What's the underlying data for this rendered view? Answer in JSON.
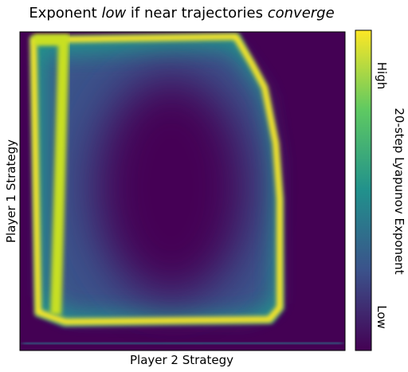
{
  "chart_data": {
    "type": "heatmap",
    "title_parts": [
      "Exponent ",
      "low",
      " if near trajectories ",
      "converge"
    ],
    "title_italic": [
      false,
      true,
      false,
      true
    ],
    "xlabel": "Player 2 Strategy",
    "ylabel": "Player 1 Strategy",
    "colorbar_label": "20-step Lyapunov Exponent",
    "colorbar_ticks": [
      "High",
      "Low"
    ],
    "colormap": [
      "#440154",
      "#3b528b",
      "#21918c",
      "#5ec962",
      "#fde725"
    ]
  }
}
